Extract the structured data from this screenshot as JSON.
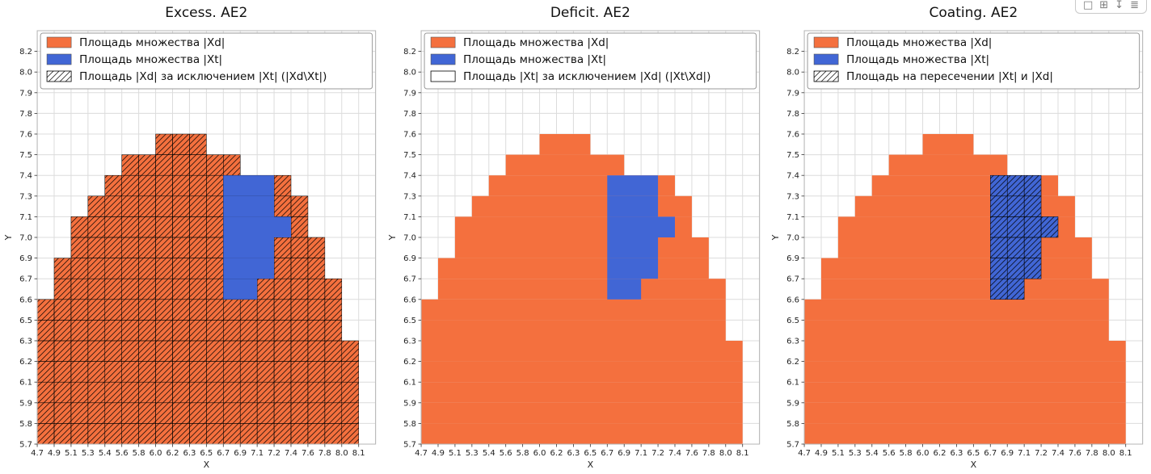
{
  "toolbar": {
    "icons": [
      {
        "name": "select-icon",
        "glyph": "□"
      },
      {
        "name": "zoom-icon",
        "glyph": "⊞"
      },
      {
        "name": "download-icon",
        "glyph": "↧"
      },
      {
        "name": "menu-icon",
        "glyph": "≣"
      }
    ]
  },
  "colors": {
    "orange": "#F4703E",
    "blue": "#4166D5",
    "grid": "#DCDCDC",
    "frame": "#B5B5B5",
    "hatch_line": "#000000",
    "legend_border": "#999999",
    "tick_text": "#222222",
    "title_text": "#111111"
  },
  "chart_data": [
    {
      "type": "heatmap",
      "title": "Excess. AE2",
      "xlabel": "X",
      "ylabel": "Y",
      "grid": true,
      "legend_position": "upper left",
      "x_ticks": [
        "4.7",
        "4.9",
        "5.1",
        "5.3",
        "5.4",
        "5.6",
        "5.8",
        "6.0",
        "6.2",
        "6.3",
        "6.5",
        "6.7",
        "6.9",
        "7.1",
        "7.2",
        "7.4",
        "7.6",
        "7.8",
        "8.0",
        "8.1"
      ],
      "y_ticks": [
        "5.7",
        "5.8",
        "5.9",
        "6.1",
        "6.2",
        "6.3",
        "6.5",
        "6.6",
        "6.7",
        "6.9",
        "7.0",
        "7.1",
        "7.3",
        "7.4",
        "7.5",
        "7.6",
        "7.8",
        "7.9",
        "8.0",
        "8.2"
      ],
      "legend": [
        {
          "label": "Площадь множества |Xd|",
          "swatch": "orange"
        },
        {
          "label": "Площадь множества  |Xt|",
          "swatch": "blue"
        },
        {
          "label": "Площадь |Xd| за исключением |Xt| (|Xd\\Xt|)",
          "swatch": "hatch"
        }
      ],
      "hatch_on": "orange",
      "orange_rows": [
        [
          0,
          18
        ],
        [
          0,
          18
        ],
        [
          0,
          18
        ],
        [
          0,
          18
        ],
        [
          0,
          18
        ],
        [
          0,
          17
        ],
        [
          0,
          17
        ],
        [
          1,
          17
        ],
        [
          1,
          16
        ],
        [
          2,
          16
        ],
        [
          2,
          15
        ],
        [
          3,
          15
        ],
        [
          4,
          14
        ],
        [
          5,
          11
        ],
        [
          7,
          9
        ]
      ],
      "blue_rows": [
        [
          7,
          11,
          12
        ],
        [
          8,
          11,
          13
        ],
        [
          9,
          11,
          13
        ],
        [
          10,
          11,
          14
        ],
        [
          11,
          11,
          13
        ],
        [
          12,
          11,
          13
        ]
      ]
    },
    {
      "type": "heatmap",
      "title": "Deficit. AE2",
      "xlabel": "X",
      "ylabel": "Y",
      "grid": true,
      "legend_position": "upper left",
      "x_ticks": [
        "4.7",
        "4.9",
        "5.1",
        "5.3",
        "5.4",
        "5.6",
        "5.8",
        "6.0",
        "6.2",
        "6.3",
        "6.5",
        "6.7",
        "6.9",
        "7.1",
        "7.2",
        "7.4",
        "7.6",
        "7.8",
        "8.0",
        "8.1"
      ],
      "y_ticks": [
        "5.7",
        "5.8",
        "5.9",
        "6.1",
        "6.2",
        "6.3",
        "6.5",
        "6.6",
        "6.7",
        "6.9",
        "7.0",
        "7.1",
        "7.3",
        "7.4",
        "7.5",
        "7.6",
        "7.8",
        "7.9",
        "8.0",
        "8.2"
      ],
      "legend": [
        {
          "label": "Площадь множества |Xd|",
          "swatch": "orange"
        },
        {
          "label": "Площадь множества  |Xt|",
          "swatch": "blue"
        },
        {
          "label": "Площадь |Xt| за исключением |Xd| (|Xt\\Xd|)",
          "swatch": "outline"
        }
      ],
      "hatch_on": "none",
      "orange_rows": [
        [
          0,
          18
        ],
        [
          0,
          18
        ],
        [
          0,
          18
        ],
        [
          0,
          18
        ],
        [
          0,
          18
        ],
        [
          0,
          17
        ],
        [
          0,
          17
        ],
        [
          1,
          17
        ],
        [
          1,
          16
        ],
        [
          2,
          16
        ],
        [
          2,
          15
        ],
        [
          3,
          15
        ],
        [
          4,
          14
        ],
        [
          5,
          11
        ],
        [
          7,
          9
        ]
      ],
      "blue_rows": [
        [
          7,
          11,
          12
        ],
        [
          8,
          11,
          13
        ],
        [
          9,
          11,
          13
        ],
        [
          10,
          11,
          14
        ],
        [
          11,
          11,
          13
        ],
        [
          12,
          11,
          13
        ]
      ]
    },
    {
      "type": "heatmap",
      "title": "Coating. AE2",
      "xlabel": "X",
      "ylabel": "Y",
      "grid": true,
      "legend_position": "upper left",
      "x_ticks": [
        "4.7",
        "4.9",
        "5.1",
        "5.3",
        "5.4",
        "5.6",
        "5.8",
        "6.0",
        "6.2",
        "6.3",
        "6.5",
        "6.7",
        "6.9",
        "7.1",
        "7.2",
        "7.4",
        "7.6",
        "7.8",
        "8.0",
        "8.1"
      ],
      "y_ticks": [
        "5.7",
        "5.8",
        "5.9",
        "6.1",
        "6.2",
        "6.3",
        "6.5",
        "6.6",
        "6.7",
        "6.9",
        "7.0",
        "7.1",
        "7.3",
        "7.4",
        "7.5",
        "7.6",
        "7.8",
        "7.9",
        "8.0",
        "8.2"
      ],
      "legend": [
        {
          "label": "Площадь множества |Xd|",
          "swatch": "orange"
        },
        {
          "label": "Площадь множества  |Xt|",
          "swatch": "blue"
        },
        {
          "label": "Площадь на пересечении |Xt| и |Xd|",
          "swatch": "hatch"
        }
      ],
      "hatch_on": "blue",
      "orange_rows": [
        [
          0,
          18
        ],
        [
          0,
          18
        ],
        [
          0,
          18
        ],
        [
          0,
          18
        ],
        [
          0,
          18
        ],
        [
          0,
          17
        ],
        [
          0,
          17
        ],
        [
          1,
          17
        ],
        [
          1,
          16
        ],
        [
          2,
          16
        ],
        [
          2,
          15
        ],
        [
          3,
          15
        ],
        [
          4,
          14
        ],
        [
          5,
          11
        ],
        [
          7,
          9
        ]
      ],
      "blue_rows": [
        [
          7,
          11,
          12
        ],
        [
          8,
          11,
          13
        ],
        [
          9,
          11,
          13
        ],
        [
          10,
          11,
          14
        ],
        [
          11,
          11,
          13
        ],
        [
          12,
          11,
          13
        ]
      ]
    }
  ]
}
